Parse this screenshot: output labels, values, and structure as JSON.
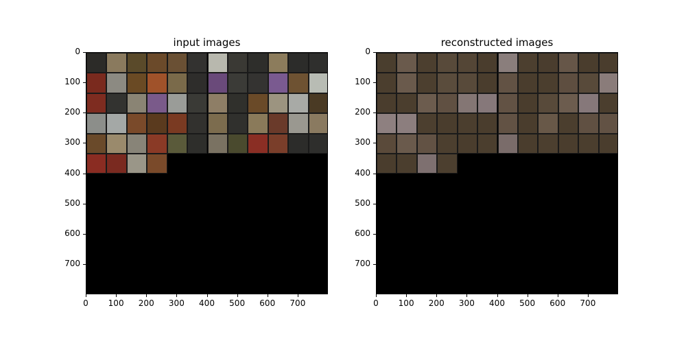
{
  "panels": [
    {
      "title": "input images",
      "tiles": [
        [
          "#2c2b28",
          "#8a7a5e",
          "#5a4a2a",
          "#6b4a2a",
          "#6a5034",
          "#333230",
          "#b8b8ae",
          "#3a3934",
          "#2e2e2b",
          "#8c7c5c",
          "#2c2c2a",
          "#2f2f2d"
        ],
        [
          "#7a2a1e",
          "#8c8a82",
          "#6a4a24",
          "#a0522a",
          "#7a6a4a",
          "#2e2d2b",
          "#6a4a7a",
          "#3b3b37",
          "#343331",
          "#7a5a90",
          "#6e5232",
          "#b8bcb4"
        ],
        [
          "#7e2c20",
          "#333330",
          "#8a8474",
          "#7a5a8a",
          "#9a9c98",
          "#3a3a36",
          "#8e7e66",
          "#30302c",
          "#6a4a28",
          "#9c9480",
          "#a8aaa6",
          "#4a3a24"
        ],
        [
          "#8c8e8a",
          "#a4a8a6",
          "#7a4a2a",
          "#5a3a1e",
          "#7a3a22",
          "#32312e",
          "#7c6c4e",
          "#30302d",
          "#8a7a5a",
          "#6a3a2a",
          "#9a9890",
          "#8a7a60"
        ],
        [
          "#6a4a2a",
          "#9a8a6c",
          "#888478",
          "#8a3a26",
          "#5a5a3a",
          "#2e2e2b",
          "#7a7262",
          "#4a4a2e",
          "#8a2e24",
          "#7a3e2a",
          "#2c2c2a",
          "#2e2e2c"
        ],
        [
          "#8a2c22",
          "#7a2a20",
          "#9a9688",
          "#7a4a2a"
        ]
      ]
    },
    {
      "title": "reconstructed images",
      "tiles": [
        [
          "#4a3e2e",
          "#6a5a4c",
          "#4c3f2f",
          "#584a3a",
          "#544636",
          "#4a3d2d",
          "#8a7e7c",
          "#4c3f2f",
          "#4a3d2e",
          "#665648",
          "#4a3d2d",
          "#4a3d2d"
        ],
        [
          "#4b3e2e",
          "#6a5a4c",
          "#4c3f2f",
          "#5a4c3c",
          "#584a3a",
          "#4a3d2d",
          "#625244",
          "#4a3d2d",
          "#4b3e2e",
          "#5e4e40",
          "#584a3a",
          "#8a7c7a"
        ],
        [
          "#4a3d2d",
          "#4b3e2e",
          "#6c5c4e",
          "#605042",
          "#847674",
          "#86787a",
          "#625244",
          "#4a3d2d",
          "#584a3a",
          "#6c5c4e",
          "#86787a",
          "#4b3e2e"
        ],
        [
          "#8e8080",
          "#8c7e7e",
          "#4c3f2f",
          "#4a3d2d",
          "#4b3e2e",
          "#4a3d2d",
          "#625244",
          "#4a3d2d",
          "#685848",
          "#4b3e2e",
          "#605042",
          "#625244"
        ],
        [
          "#5a4a3a",
          "#6a5a4c",
          "#625244",
          "#4c3f2f",
          "#4a3d2d",
          "#4b3e2e",
          "#7a6c6a",
          "#4a3d2d",
          "#4c3f2f",
          "#4a3d2d",
          "#4b3e2e",
          "#4a3d2d"
        ],
        [
          "#4a3d2d",
          "#4b3e2e",
          "#7e7070",
          "#4c3f2f"
        ]
      ]
    }
  ],
  "axes": {
    "yticks": [
      "0",
      "100",
      "200",
      "300",
      "400",
      "500",
      "600",
      "700"
    ],
    "xticks": [
      "0",
      "100",
      "200",
      "300",
      "400",
      "500",
      "600",
      "700"
    ],
    "tick_values": [
      0,
      100,
      200,
      300,
      400,
      500,
      600,
      700
    ],
    "extent": 800,
    "tile_size": 66.67
  }
}
